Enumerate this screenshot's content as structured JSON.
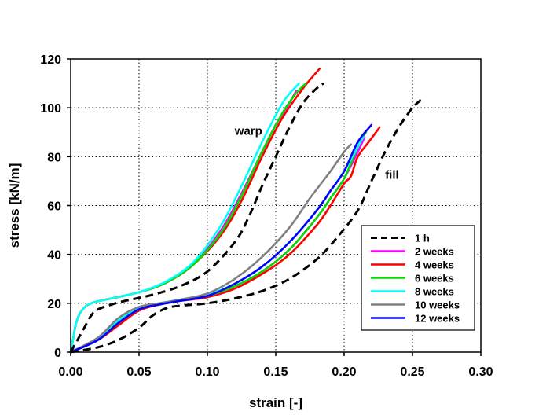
{
  "chart_data": {
    "type": "line",
    "xlabel": "strain [-]",
    "ylabel": "stress [kN/m]",
    "xlim": [
      0,
      0.3
    ],
    "ylim": [
      0,
      120
    ],
    "x_ticks": [
      0,
      0.05,
      0.1,
      0.15,
      0.2,
      0.25,
      0.3
    ],
    "x_tick_labels": [
      "0.00",
      "0.05",
      "0.10",
      "0.15",
      "0.20",
      "0.25",
      "0.30"
    ],
    "y_ticks": [
      0,
      20,
      40,
      60,
      80,
      100,
      120
    ],
    "y_tick_labels": [
      "0",
      "20",
      "40",
      "60",
      "80",
      "100",
      "120"
    ],
    "grid": true,
    "legend_position": "bottom-right",
    "annotations": [
      {
        "text": "warp",
        "x": 0.12,
        "y": 89
      },
      {
        "text": "fill",
        "x": 0.23,
        "y": 71
      }
    ],
    "series": [
      {
        "name": "1 h",
        "color": "#000000",
        "dashed": true,
        "group": "warp",
        "points": [
          [
            0,
            0
          ],
          [
            0.005,
            5
          ],
          [
            0.01,
            10
          ],
          [
            0.015,
            15
          ],
          [
            0.02,
            17.5
          ],
          [
            0.03,
            19.5
          ],
          [
            0.04,
            21
          ],
          [
            0.06,
            23.5
          ],
          [
            0.08,
            27
          ],
          [
            0.1,
            33
          ],
          [
            0.12,
            45
          ],
          [
            0.13,
            55
          ],
          [
            0.14,
            68
          ],
          [
            0.15,
            80
          ],
          [
            0.16,
            92
          ],
          [
            0.17,
            102
          ],
          [
            0.18,
            108
          ],
          [
            0.185,
            110
          ]
        ]
      },
      {
        "name": "2 weeks",
        "color": "#ff00ff",
        "dashed": false,
        "group": "warp",
        "points": [
          [
            0,
            0
          ],
          [
            0.002,
            6
          ],
          [
            0.004,
            12
          ],
          [
            0.008,
            17
          ],
          [
            0.015,
            20
          ],
          [
            0.03,
            22
          ],
          [
            0.05,
            24.5
          ],
          [
            0.07,
            28.5
          ],
          [
            0.09,
            36
          ],
          [
            0.11,
            50
          ],
          [
            0.125,
            65
          ],
          [
            0.14,
            82
          ],
          [
            0.15,
            93
          ],
          [
            0.16,
            102
          ],
          [
            0.165,
            107
          ]
        ]
      },
      {
        "name": "4 weeks",
        "color": "#ff0000",
        "dashed": false,
        "group": "warp",
        "points": [
          [
            0,
            0
          ],
          [
            0.002,
            6
          ],
          [
            0.004,
            12
          ],
          [
            0.008,
            17
          ],
          [
            0.015,
            20
          ],
          [
            0.03,
            22
          ],
          [
            0.05,
            24.5
          ],
          [
            0.07,
            28.5
          ],
          [
            0.09,
            36
          ],
          [
            0.11,
            48
          ],
          [
            0.125,
            62
          ],
          [
            0.14,
            80
          ],
          [
            0.155,
            96
          ],
          [
            0.17,
            108
          ],
          [
            0.182,
            116
          ]
        ]
      },
      {
        "name": "6 weeks",
        "color": "#00dd00",
        "dashed": false,
        "group": "warp",
        "points": [
          [
            0,
            0
          ],
          [
            0.002,
            6
          ],
          [
            0.004,
            12
          ],
          [
            0.008,
            17
          ],
          [
            0.015,
            20
          ],
          [
            0.03,
            22
          ],
          [
            0.05,
            24.5
          ],
          [
            0.07,
            28.5
          ],
          [
            0.09,
            36
          ],
          [
            0.11,
            49
          ],
          [
            0.125,
            64
          ],
          [
            0.14,
            82
          ],
          [
            0.155,
            98
          ],
          [
            0.165,
            106
          ],
          [
            0.172,
            110
          ]
        ]
      },
      {
        "name": "8 weeks",
        "color": "#00ffff",
        "dashed": false,
        "group": "warp",
        "points": [
          [
            0,
            0
          ],
          [
            0.002,
            6
          ],
          [
            0.004,
            12
          ],
          [
            0.008,
            17
          ],
          [
            0.015,
            20
          ],
          [
            0.03,
            22
          ],
          [
            0.05,
            24.5
          ],
          [
            0.07,
            29
          ],
          [
            0.09,
            37
          ],
          [
            0.11,
            52
          ],
          [
            0.125,
            68
          ],
          [
            0.14,
            86
          ],
          [
            0.155,
            102
          ],
          [
            0.167,
            110
          ]
        ]
      },
      {
        "name": "1 h",
        "color": "#000000",
        "dashed": true,
        "group": "fill",
        "points": [
          [
            0,
            0
          ],
          [
            0.02,
            2
          ],
          [
            0.035,
            5
          ],
          [
            0.05,
            10
          ],
          [
            0.06,
            15
          ],
          [
            0.07,
            18
          ],
          [
            0.08,
            19
          ],
          [
            0.1,
            20
          ],
          [
            0.12,
            22
          ],
          [
            0.14,
            25
          ],
          [
            0.16,
            30
          ],
          [
            0.18,
            38
          ],
          [
            0.195,
            47
          ],
          [
            0.21,
            58
          ],
          [
            0.22,
            70
          ],
          [
            0.23,
            82
          ],
          [
            0.24,
            92
          ],
          [
            0.25,
            100
          ],
          [
            0.258,
            104
          ]
        ]
      },
      {
        "name": "2 weeks",
        "color": "#ff00ff",
        "dashed": false,
        "group": "fill",
        "points": [
          [
            0,
            0
          ],
          [
            0.02,
            5
          ],
          [
            0.035,
            12
          ],
          [
            0.05,
            17.5
          ],
          [
            0.065,
            19.5
          ],
          [
            0.08,
            21
          ],
          [
            0.1,
            23
          ],
          [
            0.12,
            27
          ],
          [
            0.14,
            33
          ],
          [
            0.16,
            42
          ],
          [
            0.18,
            55
          ],
          [
            0.19,
            63
          ],
          [
            0.2,
            71
          ],
          [
            0.21,
            82
          ],
          [
            0.215,
            88
          ]
        ]
      },
      {
        "name": "4 weeks",
        "color": "#ff0000",
        "dashed": false,
        "group": "fill",
        "points": [
          [
            0,
            0
          ],
          [
            0.02,
            5
          ],
          [
            0.035,
            11
          ],
          [
            0.05,
            17
          ],
          [
            0.065,
            19.5
          ],
          [
            0.08,
            21
          ],
          [
            0.1,
            22.5
          ],
          [
            0.12,
            26
          ],
          [
            0.14,
            32
          ],
          [
            0.16,
            40
          ],
          [
            0.18,
            52
          ],
          [
            0.19,
            60
          ],
          [
            0.2,
            69
          ],
          [
            0.205,
            72
          ],
          [
            0.21,
            80
          ],
          [
            0.218,
            86
          ],
          [
            0.226,
            92
          ]
        ]
      },
      {
        "name": "6 weeks",
        "color": "#00dd00",
        "dashed": false,
        "group": "fill",
        "points": [
          [
            0,
            0
          ],
          [
            0.02,
            5
          ],
          [
            0.035,
            12
          ],
          [
            0.05,
            17.5
          ],
          [
            0.065,
            19.5
          ],
          [
            0.08,
            21
          ],
          [
            0.1,
            23
          ],
          [
            0.12,
            27
          ],
          [
            0.14,
            33
          ],
          [
            0.16,
            42
          ],
          [
            0.18,
            55
          ],
          [
            0.19,
            63
          ],
          [
            0.2,
            71
          ],
          [
            0.21,
            84
          ],
          [
            0.216,
            90
          ]
        ]
      },
      {
        "name": "8 weeks",
        "color": "#00ffff",
        "dashed": false,
        "group": "fill",
        "points": [
          [
            0,
            0
          ],
          [
            0.02,
            5.5
          ],
          [
            0.035,
            13
          ],
          [
            0.05,
            18
          ],
          [
            0.065,
            20
          ],
          [
            0.08,
            21.5
          ],
          [
            0.1,
            23.5
          ],
          [
            0.12,
            28
          ],
          [
            0.14,
            35
          ],
          [
            0.16,
            45
          ],
          [
            0.18,
            58
          ],
          [
            0.19,
            66
          ],
          [
            0.2,
            74
          ],
          [
            0.21,
            84
          ],
          [
            0.214,
            88
          ]
        ]
      },
      {
        "name": "10 weeks",
        "color": "#808080",
        "dashed": false,
        "group": "fill",
        "points": [
          [
            0,
            0
          ],
          [
            0.02,
            6
          ],
          [
            0.035,
            14
          ],
          [
            0.05,
            18.5
          ],
          [
            0.065,
            20
          ],
          [
            0.08,
            21.5
          ],
          [
            0.1,
            24
          ],
          [
            0.12,
            30
          ],
          [
            0.14,
            39
          ],
          [
            0.16,
            51
          ],
          [
            0.175,
            63
          ],
          [
            0.19,
            74
          ],
          [
            0.2,
            82
          ],
          [
            0.205,
            85
          ]
        ]
      },
      {
        "name": "12 weeks",
        "color": "#0000ff",
        "dashed": false,
        "group": "fill",
        "points": [
          [
            0,
            0
          ],
          [
            0.02,
            5
          ],
          [
            0.035,
            12
          ],
          [
            0.05,
            17.5
          ],
          [
            0.065,
            19.5
          ],
          [
            0.08,
            21
          ],
          [
            0.1,
            23
          ],
          [
            0.12,
            28
          ],
          [
            0.14,
            35
          ],
          [
            0.16,
            45
          ],
          [
            0.18,
            58
          ],
          [
            0.19,
            66
          ],
          [
            0.2,
            74
          ],
          [
            0.21,
            86
          ],
          [
            0.22,
            93
          ]
        ]
      }
    ],
    "legend": [
      {
        "label": "1 h",
        "color": "#000000",
        "dashed": true
      },
      {
        "label": "2 weeks",
        "color": "#ff00ff",
        "dashed": false
      },
      {
        "label": "4 weeks",
        "color": "#ff0000",
        "dashed": false
      },
      {
        "label": "6 weeks",
        "color": "#00dd00",
        "dashed": false
      },
      {
        "label": "8 weeks",
        "color": "#00ffff",
        "dashed": false
      },
      {
        "label": "10 weeks",
        "color": "#808080",
        "dashed": false
      },
      {
        "label": "12 weeks",
        "color": "#0000ff",
        "dashed": false
      }
    ]
  }
}
